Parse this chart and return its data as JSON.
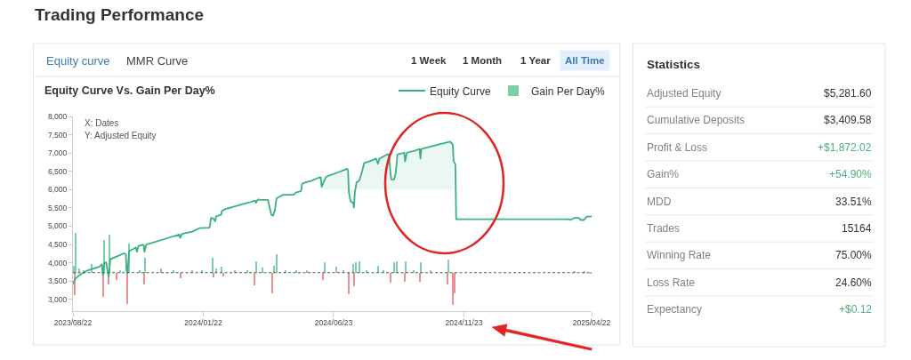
{
  "chart_data": [
    {
      "type": "line",
      "title": "Equity Curve Vs. Gain Per Day%",
      "annotations": [
        "Trading Performance",
        "Equity curve",
        "MMR Curve",
        "1 Week",
        "1 Month",
        "1 Year",
        "All Time",
        "X: Dates",
        "Y: Adjusted Equity"
      ],
      "xlim": [
        "2023-08-22",
        "2025-04-22"
      ],
      "xticks": [
        {
          "value": "2023-08-22",
          "label": "2023/08/22"
        },
        {
          "value": "2024-01-22",
          "label": "2024/01/22"
        },
        {
          "value": "2024-06-23",
          "label": "2024/06/23"
        },
        {
          "value": "2024-11-23",
          "label": "2024/11/23"
        },
        {
          "value": "2025-04-22",
          "label": "2025/04/22"
        }
      ],
      "ylim": [
        2680,
        8000
      ],
      "yticks": [
        {
          "value": 3000,
          "label": "3,000"
        },
        {
          "value": 3500,
          "label": "3,500"
        },
        {
          "value": 4000,
          "label": "4,000"
        },
        {
          "value": 4500,
          "label": "4,500"
        },
        {
          "value": 5000,
          "label": "5,000"
        },
        {
          "value": 5500,
          "label": "5,500"
        },
        {
          "value": 6000,
          "label": "6,000"
        },
        {
          "value": 6500,
          "label": "6,500"
        },
        {
          "value": 7000,
          "label": "7,000"
        },
        {
          "value": 7500,
          "label": "7,500"
        },
        {
          "value": 8000,
          "label": "8,000"
        }
      ],
      "legend": "top right",
      "ref_lines": [
        {
          "axis": "y",
          "value": 3730,
          "color": "#555555",
          "line_style": "dashed"
        }
      ],
      "series": [
        {
          "name": "Equity Curve",
          "type": "line",
          "color": "#38b27b",
          "x": [
            "2023-08-22",
            "2023-08-25",
            "2023-08-30",
            "2023-09-08",
            "2023-09-16",
            "2023-09-22",
            "2023-09-25",
            "2023-09-26",
            "2023-09-28",
            "2023-09-30",
            "2023-10-03",
            "2023-10-05",
            "2023-10-11",
            "2023-10-21",
            "2023-10-23",
            "2023-10-24",
            "2023-10-25",
            "2023-10-27",
            "2023-11-01",
            "2023-11-04",
            "2023-11-05",
            "2023-11-07",
            "2023-11-13",
            "2023-11-14",
            "2023-11-16",
            "2023-11-25",
            "2023-12-13",
            "2023-12-25",
            "2023-12-26",
            "2023-12-28",
            "2024-01-09",
            "2024-01-18",
            "2024-01-29",
            "2024-01-30",
            "2024-01-31",
            "2024-02-03",
            "2024-02-05",
            "2024-02-06",
            "2024-02-12",
            "2024-02-13",
            "2024-02-17",
            "2024-03-02",
            "2024-03-16",
            "2024-03-23",
            "2024-03-24",
            "2024-03-26",
            "2024-03-30",
            "2024-04-07",
            "2024-04-09",
            "2024-04-11",
            "2024-04-13",
            "2024-04-15",
            "2024-04-17",
            "2024-04-20",
            "2024-04-25",
            "2024-05-07",
            "2024-05-10",
            "2024-05-16",
            "2024-05-17",
            "2024-05-21",
            "2024-05-28",
            "2024-06-06",
            "2024-06-08",
            "2024-06-09",
            "2024-06-12",
            "2024-06-14",
            "2024-06-18",
            "2024-06-28",
            "2024-07-09",
            "2024-07-10",
            "2024-07-11",
            "2024-07-13",
            "2024-07-16",
            "2024-07-17",
            "2024-07-18",
            "2024-07-20",
            "2024-07-23",
            "2024-07-26",
            "2024-07-29",
            "2024-08-04",
            "2024-08-12",
            "2024-08-14",
            "2024-08-16",
            "2024-08-25",
            "2024-08-27",
            "2024-08-29",
            "2024-08-30",
            "2024-09-02",
            "2024-09-04",
            "2024-09-06",
            "2024-09-14",
            "2024-09-15",
            "2024-09-17",
            "2024-09-27",
            "2024-10-02",
            "2024-10-03",
            "2024-10-04",
            "2024-10-24",
            "2024-11-07",
            "2024-11-10",
            "2024-11-11",
            "2024-11-13",
            "2024-11-14",
            "2025-01-02",
            "2025-03-26",
            "2025-03-28",
            "2025-04-02",
            "2025-04-07",
            "2025-04-09",
            "2025-04-13",
            "2025-04-16",
            "2025-04-22"
          ],
          "values": [
            3430,
            3570,
            3670,
            3790,
            3850,
            3890,
            3960,
            3670,
            4000,
            4010,
            3610,
            4100,
            4160,
            4260,
            4240,
            3770,
            3730,
            4320,
            4380,
            4420,
            4300,
            4460,
            4490,
            4300,
            4500,
            4560,
            4690,
            4770,
            4680,
            4790,
            4850,
            4950,
            4960,
            5010,
            5230,
            5210,
            5130,
            5270,
            5310,
            5420,
            5470,
            5560,
            5650,
            5700,
            5640,
            5730,
            5720,
            5720,
            5510,
            5310,
            5290,
            5430,
            5760,
            5800,
            5860,
            5860,
            5920,
            5960,
            6160,
            6200,
            6240,
            6330,
            6340,
            6080,
            6240,
            6340,
            6390,
            6470,
            6570,
            6530,
            5920,
            5680,
            5640,
            5510,
            5920,
            6200,
            6240,
            6450,
            6730,
            6770,
            6850,
            6710,
            6850,
            6960,
            6970,
            6410,
            6280,
            6280,
            6450,
            6960,
            7010,
            6770,
            7010,
            7070,
            7110,
            6850,
            7110,
            7230,
            7310,
            7230,
            6770,
            6690,
            5190,
            5190,
            5190,
            5170,
            5230,
            5230,
            5170,
            5170,
            5260,
            5270
          ],
          "lower": [
            null,
            null,
            null,
            null,
            null,
            null,
            null,
            null,
            null,
            null,
            null,
            null,
            null,
            null,
            null,
            null,
            null,
            null,
            null,
            null,
            null,
            null,
            null,
            null,
            null,
            null,
            null,
            null,
            null,
            null,
            null,
            null,
            null,
            null,
            null,
            null,
            null,
            null,
            null,
            null,
            null,
            null,
            null,
            null,
            null,
            null,
            null,
            null,
            null,
            null,
            null,
            null,
            null,
            null,
            null,
            null,
            null,
            null,
            null,
            null,
            null,
            6000,
            6000,
            6000,
            6000,
            6000,
            6000,
            6000,
            6000,
            6000,
            6000,
            6000,
            6000,
            6000,
            6000,
            6000,
            6000,
            6000,
            6000,
            6000,
            6000,
            6000,
            6000,
            6000,
            6000,
            6000,
            6000,
            6000,
            6000,
            6000,
            6000,
            6000,
            6000,
            6000,
            6000,
            6000,
            6000,
            6000,
            6000,
            6000,
            null,
            null,
            null,
            null,
            null,
            null,
            null,
            null,
            null,
            null,
            null,
            null
          ],
          "upper": [
            null,
            null,
            null,
            null,
            null,
            null,
            null,
            null,
            null,
            null,
            null,
            null,
            null,
            null,
            null,
            null,
            null,
            null,
            null,
            null,
            null,
            null,
            null,
            null,
            null,
            null,
            null,
            null,
            null,
            null,
            null,
            null,
            null,
            null,
            null,
            null,
            null,
            null,
            null,
            null,
            null,
            null,
            null,
            null,
            null,
            null,
            null,
            null,
            null,
            null,
            null,
            null,
            null,
            null,
            null,
            null,
            null,
            null,
            null,
            null,
            null,
            6330,
            6340,
            6080,
            6240,
            6340,
            6390,
            6470,
            6570,
            6530,
            5920,
            5680,
            5640,
            5510,
            5920,
            6200,
            6240,
            6450,
            6730,
            6770,
            6850,
            6710,
            6850,
            6960,
            6970,
            6410,
            6280,
            6280,
            6450,
            6960,
            7010,
            6770,
            7010,
            7070,
            7110,
            6850,
            7110,
            7230,
            7310,
            7230,
            null,
            null,
            null,
            null,
            null,
            null,
            null,
            null,
            null,
            null,
            null,
            null
          ]
        },
        {
          "name": "Gain Per Day%",
          "type": "bar",
          "x": [
            "2023-08-23",
            "2023-08-24",
            "2023-08-25",
            "2023-08-29",
            "2023-09-04",
            "2023-09-13",
            "2023-09-27",
            "2023-09-28",
            "2023-10-03",
            "2023-10-04",
            "2023-10-12",
            "2023-10-16",
            "2023-10-25",
            "2023-10-27",
            "2023-11-08",
            "2023-11-14",
            "2023-11-15",
            "2023-12-04",
            "2023-12-18",
            "2023-12-27",
            "2024-01-09",
            "2024-01-21",
            "2024-02-02",
            "2024-02-03",
            "2024-02-06",
            "2024-02-13",
            "2024-02-15",
            "2024-02-28",
            "2024-03-14",
            "2024-03-22",
            "2024-03-24",
            "2024-04-01",
            "2024-04-12",
            "2024-04-14",
            "2024-04-17",
            "2024-04-28",
            "2024-05-10",
            "2024-05-23",
            "2024-06-11",
            "2024-06-13",
            "2024-06-26",
            "2024-07-05",
            "2024-07-11",
            "2024-07-16",
            "2024-07-17",
            "2024-07-19",
            "2024-07-24",
            "2024-08-01",
            "2024-08-14",
            "2024-08-21",
            "2024-08-29",
            "2024-09-02",
            "2024-09-05",
            "2024-09-15",
            "2024-09-16",
            "2024-09-25",
            "2024-10-03",
            "2024-10-04",
            "2024-10-15",
            "2024-11-04",
            "2024-11-05",
            "2024-11-10",
            "2024-11-12",
            "2025-04-02",
            "2025-04-14",
            "2025-04-21"
          ],
          "base": [
            3730,
            3730,
            3730,
            3730,
            3730,
            3730,
            3730,
            3730,
            3730,
            3730,
            3730,
            3730,
            3730,
            3730,
            3730,
            3730,
            3730,
            3730,
            3730,
            3730,
            3730,
            3730,
            3730,
            3730,
            3730,
            3730,
            3730,
            3730,
            3730,
            3730,
            3730,
            3730,
            3730,
            3730,
            3730,
            3730,
            3730,
            3730,
            3730,
            3730,
            3730,
            3730,
            3730,
            3730,
            3730,
            3730,
            3730,
            3730,
            3730,
            3730,
            3730,
            3730,
            3730,
            3730,
            3730,
            3730,
            3730,
            3730,
            3730,
            3730,
            3730,
            3730,
            3730,
            3730,
            3730,
            3730
          ],
          "values": [
            200,
            -610,
            1090,
            120,
            60,
            240,
            -650,
            890,
            -330,
            1040,
            -200,
            70,
            -850,
            790,
            70,
            -330,
            410,
            120,
            60,
            -150,
            60,
            70,
            410,
            -120,
            120,
            160,
            -110,
            60,
            70,
            -350,
            320,
            140,
            -570,
            200,
            510,
            60,
            70,
            60,
            -210,
            280,
            160,
            60,
            -590,
            240,
            -360,
            280,
            320,
            60,
            190,
            60,
            -280,
            280,
            310,
            -240,
            310,
            60,
            -240,
            280,
            60,
            -320,
            360,
            -870,
            -570,
            40,
            40,
            -40
          ],
          "colors": [
            "#7dcfa8",
            "#e99091",
            "#7dcfa8",
            "#7dcfa8",
            "#7dcfa8",
            "#7dcfa8",
            "#e99091",
            "#7dcfa8",
            "#e99091",
            "#7dcfa8",
            "#e99091",
            "#7dcfa8",
            "#e99091",
            "#7dcfa8",
            "#7dcfa8",
            "#e99091",
            "#7dcfa8",
            "#7dcfa8",
            "#7dcfa8",
            "#e99091",
            "#7dcfa8",
            "#7dcfa8",
            "#7dcfa8",
            "#e99091",
            "#7dcfa8",
            "#7dcfa8",
            "#e99091",
            "#7dcfa8",
            "#7dcfa8",
            "#e99091",
            "#7dcfa8",
            "#7dcfa8",
            "#e99091",
            "#7dcfa8",
            "#7dcfa8",
            "#7dcfa8",
            "#7dcfa8",
            "#7dcfa8",
            "#e99091",
            "#7dcfa8",
            "#7dcfa8",
            "#7dcfa8",
            "#e99091",
            "#7dcfa8",
            "#e99091",
            "#7dcfa8",
            "#7dcfa8",
            "#7dcfa8",
            "#7dcfa8",
            "#7dcfa8",
            "#e99091",
            "#7dcfa8",
            "#7dcfa8",
            "#e99091",
            "#7dcfa8",
            "#7dcfa8",
            "#e99091",
            "#7dcfa8",
            "#7dcfa8",
            "#e99091",
            "#7dcfa8",
            "#e99091",
            "#e99091",
            "#7dcfa8",
            "#7dcfa8",
            "#e99091"
          ]
        }
      ]
    },
    {
      "type": "other",
      "title": "Statistics",
      "categories": [
        "Adjusted Equity",
        "Cumulative Deposits",
        "Profit & Loss",
        "Gain%",
        "MDD",
        "Trades",
        "Winning Rate",
        "Loss Rate",
        "Expectancy"
      ],
      "value_labels": [
        "$5,281.60",
        "$3,409.58",
        "+$1,872.02",
        "+54.90%",
        "33.51%",
        "15164",
        "75.00%",
        "24.60%",
        "+$0.12"
      ],
      "colors": [
        "#333333",
        "#333333",
        "#4caf7d",
        "#4caf7d",
        "#333333",
        "#333333",
        "#333333",
        "#333333",
        "#4caf7d"
      ]
    }
  ]
}
